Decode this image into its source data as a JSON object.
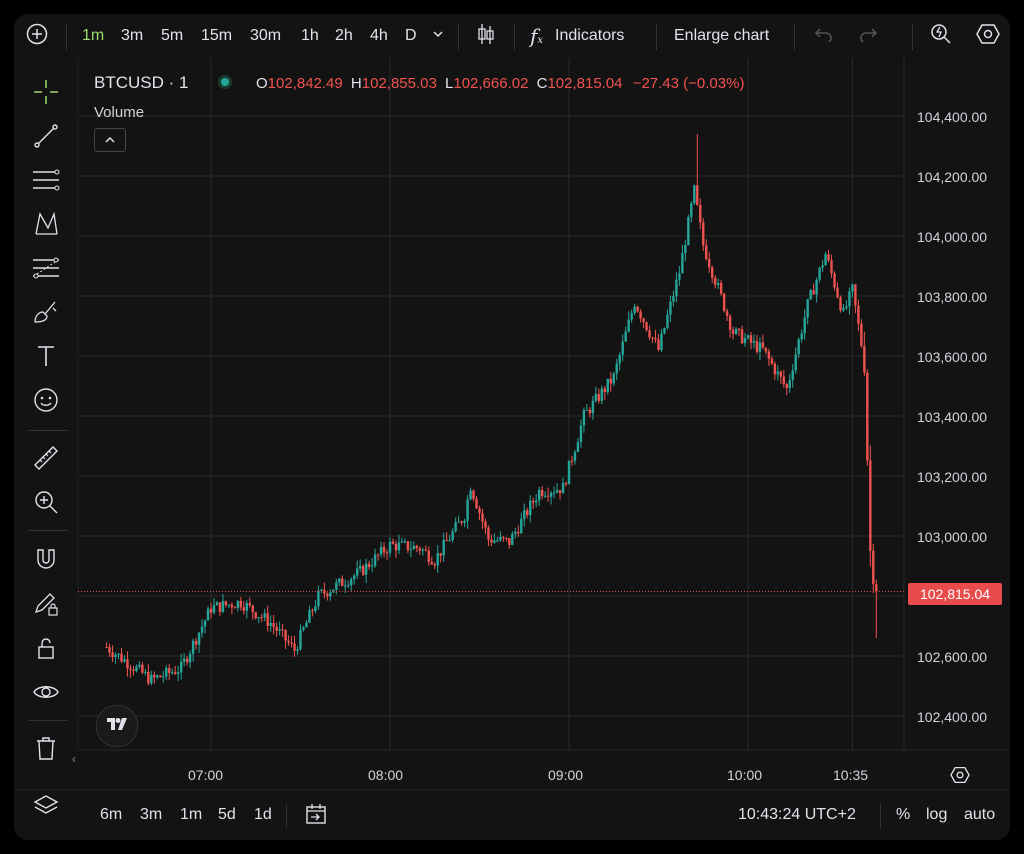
{
  "toolbar": {
    "intervals": [
      "1m",
      "3m",
      "5m",
      "15m",
      "30m",
      "1h",
      "2h",
      "4h",
      "D"
    ],
    "active_interval": "1m",
    "indicators_label": "Indicators",
    "enlarge_label": "Enlarge chart"
  },
  "legend": {
    "symbol": "BTCUSD · 1",
    "open_key": "O",
    "open": "102,842.49",
    "high_key": "H",
    "high": "102,855.03",
    "low_key": "L",
    "low": "102,666.02",
    "close_key": "C",
    "close": "102,815.04",
    "change": "−27.43 (−0.03%)",
    "volume_label": "Volume"
  },
  "price_axis": {
    "ticks": [
      "104,400.00",
      "104,200.00",
      "104,000.00",
      "103,800.00",
      "103,600.00",
      "103,400.00",
      "103,200.00",
      "103,000.00",
      "102,600.00",
      "102,400.00"
    ],
    "current_price": "102,815.04"
  },
  "time_axis": {
    "ticks": [
      "07:00",
      "08:00",
      "09:00",
      "10:00",
      "10:35"
    ]
  },
  "bottom_bar": {
    "ranges": [
      "6m",
      "3m",
      "1m",
      "5d",
      "1d"
    ],
    "clock": "10:43:24 UTC+2",
    "percent": "%",
    "log": "log",
    "auto": "auto"
  },
  "colors": {
    "up": "#26a69a",
    "down": "#ef5350",
    "active": "#9ad96b",
    "price_tag": "#e84b4b"
  },
  "chart_data": {
    "type": "candlestick",
    "symbol": "BTCUSD",
    "interval": "1m",
    "ylim": [
      102350,
      104470
    ],
    "yticks": [
      104400,
      104200,
      104000,
      103800,
      103600,
      103400,
      103200,
      103000,
      102600,
      102400
    ],
    "xticks": [
      "07:00",
      "08:00",
      "09:00",
      "10:00",
      "10:35"
    ],
    "last_price": 102815.04,
    "path_anchors": [
      [
        "06:25",
        102630
      ],
      [
        "06:40",
        102520
      ],
      [
        "06:50",
        102560
      ],
      [
        "07:00",
        102760
      ],
      [
        "07:10",
        102780
      ],
      [
        "07:20",
        102710
      ],
      [
        "07:28",
        102620
      ],
      [
        "07:36",
        102800
      ],
      [
        "07:50",
        102880
      ],
      [
        "08:00",
        102970
      ],
      [
        "08:10",
        102960
      ],
      [
        "08:15",
        102920
      ],
      [
        "08:25",
        103070
      ],
      [
        "08:27",
        103170
      ],
      [
        "08:33",
        102990
      ],
      [
        "08:40",
        102980
      ],
      [
        "08:50",
        103150
      ],
      [
        "08:58",
        103160
      ],
      [
        "09:05",
        103400
      ],
      [
        "09:15",
        103530
      ],
      [
        "09:22",
        103780
      ],
      [
        "09:30",
        103620
      ],
      [
        "09:37",
        103880
      ],
      [
        "09:42",
        104150
      ],
      [
        "09:45",
        103970
      ],
      [
        "09:55",
        103680
      ],
      [
        "10:05",
        103620
      ],
      [
        "10:13",
        103490
      ],
      [
        "10:20",
        103770
      ],
      [
        "10:26",
        103940
      ],
      [
        "10:32",
        103740
      ],
      [
        "10:35",
        103820
      ],
      [
        "10:39",
        103580
      ],
      [
        "10:41",
        102950
      ],
      [
        "10:43",
        102815
      ]
    ],
    "high_max": 104340,
    "low_min": 102660
  }
}
